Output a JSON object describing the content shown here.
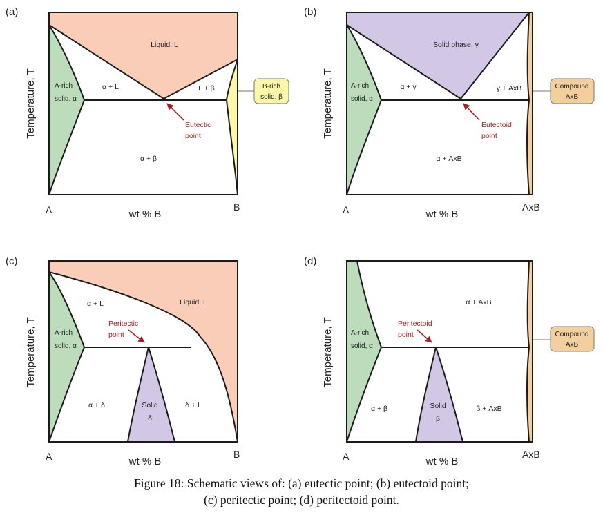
{
  "panels": {
    "a": {
      "letter": "(a)",
      "y_axis": "Temperature, T",
      "x_axis": "wt % B",
      "left_end": "A",
      "right_end": "B",
      "regions": {
        "liquid": "Liquid, L",
        "alpha_l": "α + L",
        "l_beta": "L + β",
        "alpha_solid_1": "A-rich",
        "alpha_solid_2": "solid, α",
        "alpha_beta": "α + β"
      },
      "callout_1": "B-rich",
      "callout_2": "solid, β",
      "point_1": "Eutectic",
      "point_2": "point"
    },
    "b": {
      "letter": "(b)",
      "y_axis": "Temperature, T",
      "x_axis": "wt % B",
      "left_end": "A",
      "right_end": "AxB",
      "regions": {
        "solid_gamma": "Solid phase, γ",
        "alpha_gamma": "α + γ",
        "gamma_axb": "γ + AxB",
        "alpha_solid_1": "A-rich",
        "alpha_solid_2": "solid, α",
        "alpha_axb": "α + AxB"
      },
      "callout_1": "Compound",
      "callout_2": "AxB",
      "point_1": "Eutectoid",
      "point_2": "point"
    },
    "c": {
      "letter": "(c)",
      "y_axis": "Temperature, T",
      "x_axis": "wt % B",
      "left_end": "A",
      "right_end": "B",
      "regions": {
        "liquid": "Liquid, L",
        "alpha_l": "α + L",
        "alpha_solid_1": "A-rich",
        "alpha_solid_2": "solid, α",
        "alpha_delta": "α + δ",
        "solid_delta_1": "Solid",
        "solid_delta_2": "δ",
        "delta_l": "δ + L"
      },
      "point_1": "Peritectic",
      "point_2": "point"
    },
    "d": {
      "letter": "(d)",
      "y_axis": "Temperature, T",
      "x_axis": "wt % B",
      "left_end": "A",
      "right_end": "AxB",
      "regions": {
        "alpha_axb": "α + AxB",
        "alpha_solid_1": "A-rich",
        "alpha_solid_2": "solid, α",
        "alpha_beta": "α + β",
        "solid_beta_1": "Solid",
        "solid_beta_2": "β",
        "beta_axb": "β + AxB"
      },
      "callout_1": "Compound",
      "callout_2": "AxB",
      "point_1": "Peritectoid",
      "point_2": "point"
    }
  },
  "caption": {
    "line1": "Figure 18:  Schematic views of: (a) eutectic point; (b) eutectoid point;",
    "line2": "(c) peritectic point; (d) peritectoid point."
  },
  "colors": {
    "liquid": "#f9cdb8",
    "alpha_solid": "#bddcbc",
    "beta_solid": "#fbf7a8",
    "gamma_solid": "#d2c8e6",
    "compound": "#f3cf9e",
    "annotation": "#a52020"
  }
}
